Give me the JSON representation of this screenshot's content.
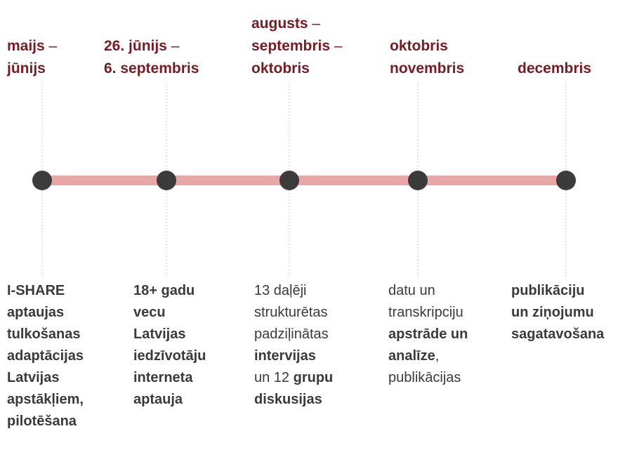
{
  "stages": [
    {
      "date": [
        [
          {
            "text": "maijs",
            "bold": true
          },
          {
            "text": " –",
            "bold": false
          }
        ],
        [
          {
            "text": "jūnijs",
            "bold": true
          }
        ]
      ],
      "description": [
        [
          {
            "text": "I-SHARE",
            "bold": true
          }
        ],
        [
          {
            "text": "aptaujas",
            "bold": true
          }
        ],
        [
          {
            "text": "tulkošanas",
            "bold": true
          }
        ],
        [
          {
            "text": "adaptācijas",
            "bold": true
          }
        ],
        [
          {
            "text": "Latvijas",
            "bold": true
          }
        ],
        [
          {
            "text": "apstākļiem,",
            "bold": true
          }
        ],
        [
          {
            "text": "pilotēšana",
            "bold": true
          }
        ]
      ]
    },
    {
      "date": [
        [
          {
            "text": "26. jūnijs",
            "bold": true
          },
          {
            "text": " –",
            "bold": false
          }
        ],
        [
          {
            "text": "6. septembris",
            "bold": true
          }
        ]
      ],
      "description": [
        [
          {
            "text": "18+ gadu",
            "bold": true
          }
        ],
        [
          {
            "text": "vecu",
            "bold": true
          }
        ],
        [
          {
            "text": "Latvijas",
            "bold": true
          }
        ],
        [
          {
            "text": "iedzīvotāju",
            "bold": true
          }
        ],
        [
          {
            "text": "interneta",
            "bold": true
          }
        ],
        [
          {
            "text": "aptauja",
            "bold": true
          }
        ]
      ]
    },
    {
      "date": [
        [
          {
            "text": "augusts",
            "bold": true
          },
          {
            "text": " –",
            "bold": false
          }
        ],
        [
          {
            "text": "septembris",
            "bold": true
          },
          {
            "text": " –",
            "bold": false
          }
        ],
        [
          {
            "text": "oktobris",
            "bold": true
          }
        ]
      ],
      "description": [
        [
          {
            "text": "13 daļēji",
            "bold": false
          }
        ],
        [
          {
            "text": "strukturētas",
            "bold": false
          }
        ],
        [
          {
            "text": "padziļinātas",
            "bold": false
          }
        ],
        [
          {
            "text": "intervijas",
            "bold": true
          }
        ],
        [
          {
            "text": "un 12 ",
            "bold": false
          },
          {
            "text": "grupu",
            "bold": true
          }
        ],
        [
          {
            "text": "diskusijas",
            "bold": true
          }
        ]
      ]
    },
    {
      "date": [
        [
          {
            "text": "oktobris",
            "bold": true
          }
        ],
        [
          {
            "text": "novembris",
            "bold": true
          }
        ]
      ],
      "description": [
        [
          {
            "text": "datu un",
            "bold": false
          }
        ],
        [
          {
            "text": "transkripciju",
            "bold": false
          }
        ],
        [
          {
            "text": "apstrāde un",
            "bold": true
          }
        ],
        [
          {
            "text": "analīze",
            "bold": true
          },
          {
            "text": ",",
            "bold": false
          }
        ],
        [
          {
            "text": "publikācijas",
            "bold": false
          }
        ]
      ]
    },
    {
      "date": [
        [
          {
            "text": "decembris",
            "bold": true
          }
        ]
      ],
      "description": [
        [
          {
            "text": "publikāciju",
            "bold": true
          }
        ],
        [
          {
            "text": "un ziņojumu",
            "bold": true
          }
        ],
        [
          {
            "text": "sagatavošana",
            "bold": true
          }
        ]
      ]
    }
  ]
}
